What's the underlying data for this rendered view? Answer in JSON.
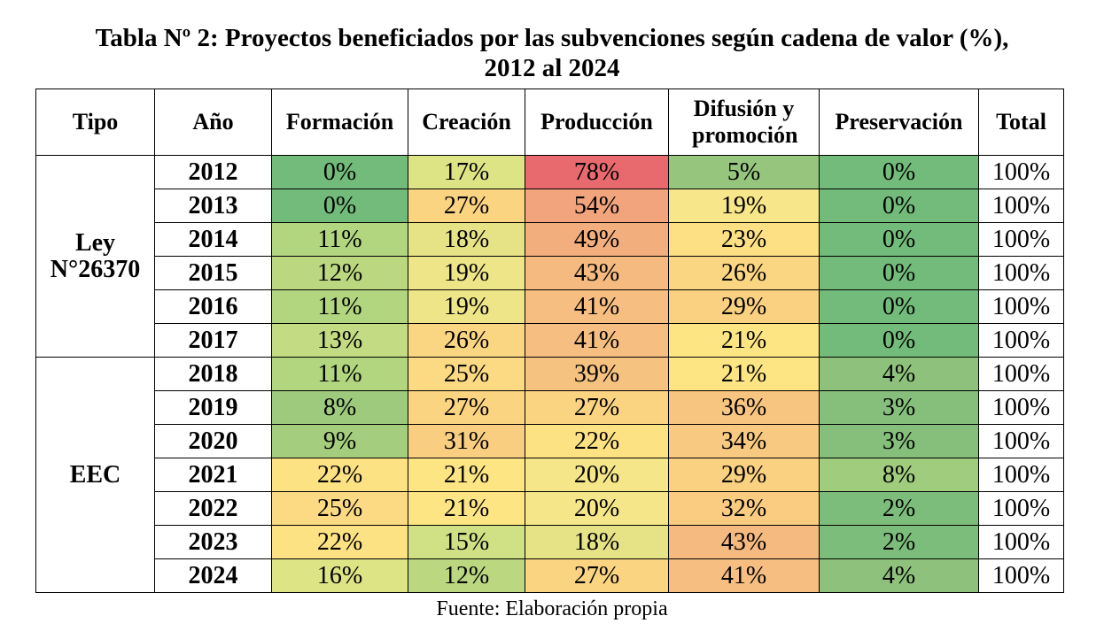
{
  "title": {
    "line1": "Tabla Nº 2: Proyectos beneficiados por las subvenciones según cadena de valor (%),",
    "line2": "2012 al 2024"
  },
  "headers": [
    "Tipo",
    "Año",
    "Formación",
    "Creación",
    "Producción",
    "Difusión y promoción",
    "Preservación",
    "Total"
  ],
  "groups": [
    {
      "label": "Ley N°26370",
      "rows": [
        {
          "year": "2012",
          "values": [
            "0%",
            "17%",
            "78%",
            "5%",
            "0%"
          ],
          "total": "100%",
          "colors": [
            "#73bb7a",
            "#dde486",
            "#e8696e",
            "#96c57e",
            "#73bb7a"
          ]
        },
        {
          "year": "2013",
          "values": [
            "0%",
            "27%",
            "54%",
            "19%",
            "0%"
          ],
          "total": "100%",
          "colors": [
            "#73bb7a",
            "#fbd482",
            "#f2a47d",
            "#f8e68a",
            "#73bb7a"
          ]
        },
        {
          "year": "2014",
          "values": [
            "11%",
            "18%",
            "49%",
            "23%",
            "0%"
          ],
          "total": "100%",
          "colors": [
            "#b2d580",
            "#e6e387",
            "#f3ae7e",
            "#fce083",
            "#73bb7a"
          ]
        },
        {
          "year": "2015",
          "values": [
            "12%",
            "19%",
            "43%",
            "26%",
            "0%"
          ],
          "total": "100%",
          "colors": [
            "#bbd881",
            "#ede588",
            "#f5ba7f",
            "#fbd682",
            "#73bb7a"
          ]
        },
        {
          "year": "2016",
          "values": [
            "11%",
            "19%",
            "41%",
            "29%",
            "0%"
          ],
          "total": "100%",
          "colors": [
            "#b2d580",
            "#ede588",
            "#f6be80",
            "#fad181",
            "#73bb7a"
          ]
        },
        {
          "year": "2017",
          "values": [
            "13%",
            "26%",
            "41%",
            "21%",
            "0%"
          ],
          "total": "100%",
          "colors": [
            "#c3db82",
            "#fbd682",
            "#f6be80",
            "#fde584",
            "#73bb7a"
          ]
        }
      ]
    },
    {
      "label": "EEC",
      "rows": [
        {
          "year": "2018",
          "values": [
            "11%",
            "25%",
            "39%",
            "21%",
            "4%"
          ],
          "total": "100%",
          "colors": [
            "#b2d580",
            "#fbda83",
            "#f6c280",
            "#fde584",
            "#8ec27c"
          ]
        },
        {
          "year": "2019",
          "values": [
            "8%",
            "27%",
            "27%",
            "36%",
            "3%"
          ],
          "total": "100%",
          "colors": [
            "#9dca7d",
            "#fbd482",
            "#fbd482",
            "#f8c580",
            "#85bf7b"
          ]
        },
        {
          "year": "2020",
          "values": [
            "9%",
            "31%",
            "22%",
            "34%",
            "3%"
          ],
          "total": "100%",
          "colors": [
            "#a4ce7e",
            "#face81",
            "#fde284",
            "#f8c981",
            "#85bf7b"
          ]
        },
        {
          "year": "2021",
          "values": [
            "22%",
            "21%",
            "20%",
            "29%",
            "8%"
          ],
          "total": "100%",
          "colors": [
            "#fde284",
            "#fde584",
            "#f5e689",
            "#fad181",
            "#a0cc7e"
          ]
        },
        {
          "year": "2022",
          "values": [
            "25%",
            "21%",
            "20%",
            "32%",
            "2%"
          ],
          "total": "100%",
          "colors": [
            "#fbda83",
            "#fde584",
            "#f5e689",
            "#f9cc81",
            "#7dbd7b"
          ]
        },
        {
          "year": "2023",
          "values": [
            "22%",
            "15%",
            "18%",
            "43%",
            "2%"
          ],
          "total": "100%",
          "colors": [
            "#fde284",
            "#d0e084",
            "#e6e387",
            "#f5ba7f",
            "#7dbd7b"
          ]
        },
        {
          "year": "2024",
          "values": [
            "16%",
            "12%",
            "27%",
            "41%",
            "4%"
          ],
          "total": "100%",
          "colors": [
            "#dde486",
            "#bbd881",
            "#fbd482",
            "#f6be80",
            "#8ec27c"
          ]
        }
      ]
    }
  ],
  "source": "Fuente: Elaboración propia"
}
